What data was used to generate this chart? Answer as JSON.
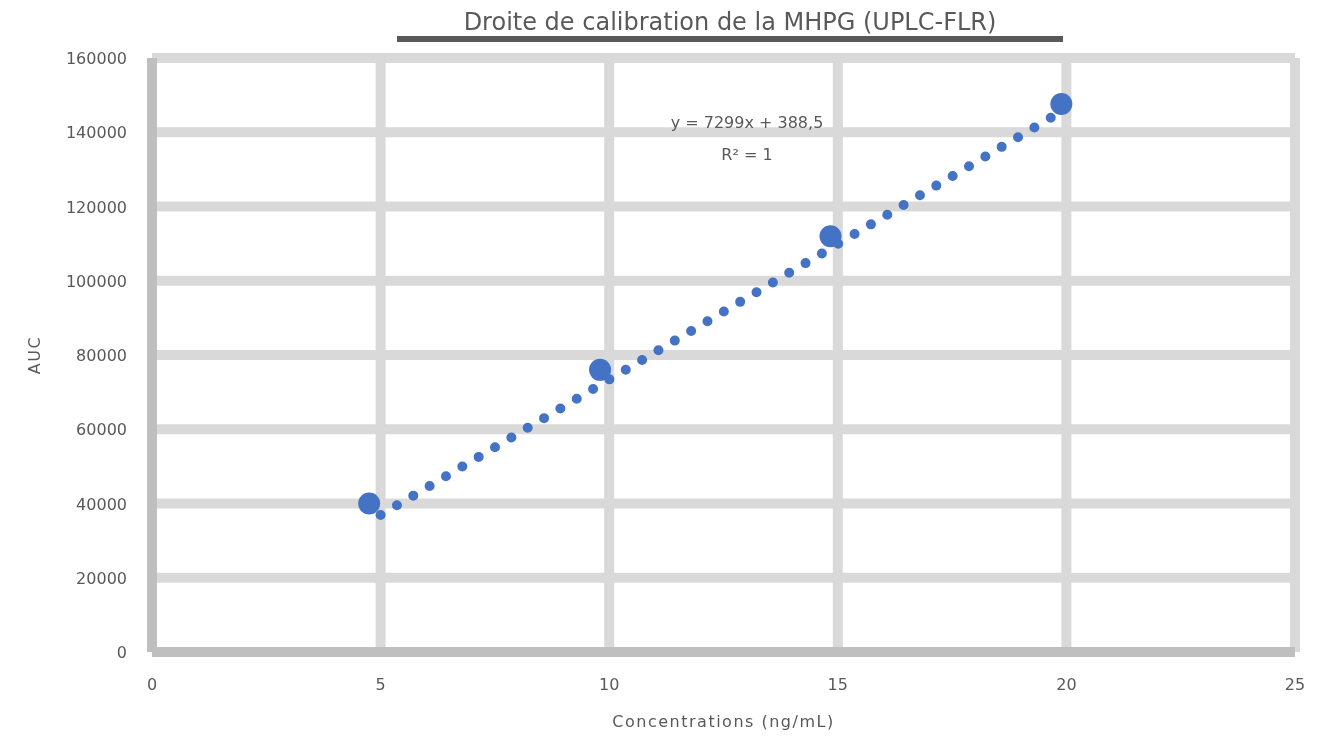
{
  "chart_data": {
    "type": "scatter",
    "title": "Droite de calibration de la MHPG (UPLC-FLR)",
    "xlabel": "Concentrations (ng/mL)",
    "ylabel": "AUC",
    "xlim": [
      0,
      25
    ],
    "xticks": [
      0,
      5,
      10,
      15,
      20,
      25
    ],
    "ylim": [
      0,
      160000
    ],
    "yticks": [
      0,
      20000,
      40000,
      60000,
      80000,
      100000,
      120000,
      140000,
      160000
    ],
    "grid": true,
    "series": [
      {
        "color": "#4472c4",
        "marker": "circle",
        "x": [
          4.75,
          9.8,
          14.84,
          19.89
        ],
        "values": [
          40000,
          76000,
          112000,
          147600
        ]
      },
      {
        "type": "line",
        "color": "#4472c4",
        "line_style": "dotted",
        "x": [
          5,
          20
        ],
        "values": [
          36900,
          146400
        ]
      }
    ],
    "annotations": [
      "y = 7299x + 388,5",
      "R² = 1"
    ]
  }
}
